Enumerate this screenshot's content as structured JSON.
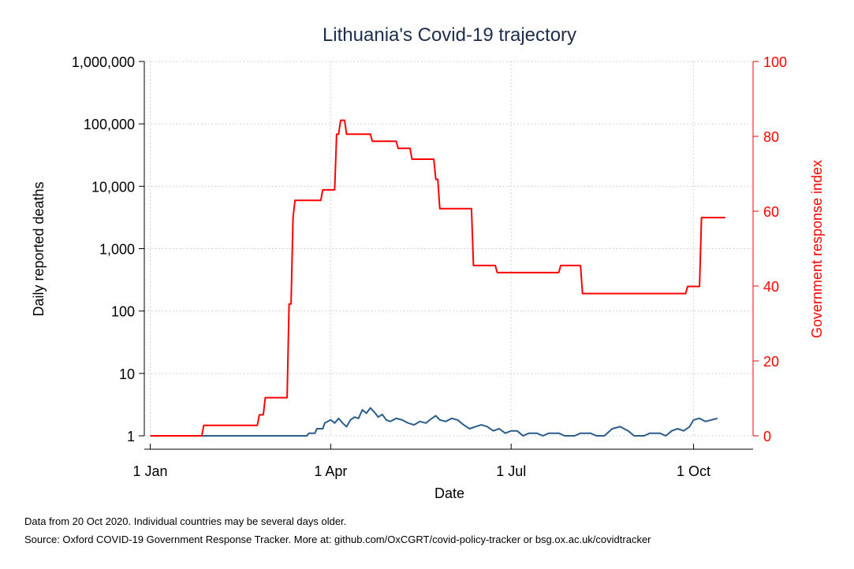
{
  "chart_data": {
    "type": "line",
    "title": "Lithuania's Covid-19 trajectory",
    "xlabel": "Date",
    "ylabel_left": "Daily reported deaths",
    "ylabel_right": "Government response index",
    "x_ticks": [
      {
        "label": "1 Jan",
        "date": "2020-01-01"
      },
      {
        "label": "1 Apr",
        "date": "2020-04-01"
      },
      {
        "label": "1 Jul",
        "date": "2020-07-01"
      },
      {
        "label": "1 Oct",
        "date": "2020-10-01"
      }
    ],
    "xlim": [
      "2019-12-29",
      "2020-10-31"
    ],
    "y_left": {
      "scale": "log",
      "ylim": [
        1,
        1000000
      ],
      "ticks": [
        {
          "label": "1",
          "value": 1
        },
        {
          "label": "10",
          "value": 10
        },
        {
          "label": "100",
          "value": 100
        },
        {
          "label": "1,000",
          "value": 1000
        },
        {
          "label": "10,000",
          "value": 10000
        },
        {
          "label": "100,000",
          "value": 100000
        },
        {
          "label": "1,000,000",
          "value": 1000000
        }
      ]
    },
    "y_right": {
      "scale": "linear",
      "ylim": [
        0,
        100
      ],
      "ticks": [
        {
          "label": "0",
          "value": 0
        },
        {
          "label": "20",
          "value": 20
        },
        {
          "label": "40",
          "value": 40
        },
        {
          "label": "60",
          "value": 60
        },
        {
          "label": "80",
          "value": 80
        },
        {
          "label": "100",
          "value": 100
        }
      ]
    },
    "grid": true,
    "legend": "none",
    "series": [
      {
        "axis": "left",
        "color": "#2b5d8a",
        "points": [
          [
            "2020-01-01",
            1
          ],
          [
            "2020-03-20",
            1
          ],
          [
            "2020-03-21",
            1.1
          ],
          [
            "2020-03-24",
            1.1
          ],
          [
            "2020-03-25",
            1.3
          ],
          [
            "2020-03-28",
            1.3
          ],
          [
            "2020-03-29",
            1.6
          ],
          [
            "2020-04-01",
            1.8
          ],
          [
            "2020-04-03",
            1.6
          ],
          [
            "2020-04-05",
            1.9
          ],
          [
            "2020-04-07",
            1.6
          ],
          [
            "2020-04-09",
            1.4
          ],
          [
            "2020-04-11",
            1.8
          ],
          [
            "2020-04-13",
            2.0
          ],
          [
            "2020-04-15",
            1.9
          ],
          [
            "2020-04-17",
            2.6
          ],
          [
            "2020-04-19",
            2.3
          ],
          [
            "2020-04-21",
            2.8
          ],
          [
            "2020-04-23",
            2.4
          ],
          [
            "2020-04-25",
            2.0
          ],
          [
            "2020-04-27",
            2.2
          ],
          [
            "2020-04-29",
            1.8
          ],
          [
            "2020-05-01",
            1.7
          ],
          [
            "2020-05-04",
            1.9
          ],
          [
            "2020-05-07",
            1.8
          ],
          [
            "2020-05-10",
            1.6
          ],
          [
            "2020-05-13",
            1.5
          ],
          [
            "2020-05-16",
            1.7
          ],
          [
            "2020-05-19",
            1.6
          ],
          [
            "2020-05-22",
            1.9
          ],
          [
            "2020-05-24",
            2.1
          ],
          [
            "2020-05-26",
            1.8
          ],
          [
            "2020-05-29",
            1.7
          ],
          [
            "2020-06-01",
            1.9
          ],
          [
            "2020-06-04",
            1.8
          ],
          [
            "2020-06-07",
            1.5
          ],
          [
            "2020-06-10",
            1.3
          ],
          [
            "2020-06-13",
            1.4
          ],
          [
            "2020-06-16",
            1.5
          ],
          [
            "2020-06-19",
            1.4
          ],
          [
            "2020-06-22",
            1.2
          ],
          [
            "2020-06-25",
            1.3
          ],
          [
            "2020-06-28",
            1.1
          ],
          [
            "2020-07-01",
            1.2
          ],
          [
            "2020-07-04",
            1.2
          ],
          [
            "2020-07-07",
            1.0
          ],
          [
            "2020-07-10",
            1.1
          ],
          [
            "2020-07-14",
            1.1
          ],
          [
            "2020-07-17",
            1.0
          ],
          [
            "2020-07-20",
            1.1
          ],
          [
            "2020-07-25",
            1.1
          ],
          [
            "2020-07-28",
            1.0
          ],
          [
            "2020-08-02",
            1.0
          ],
          [
            "2020-08-05",
            1.1
          ],
          [
            "2020-08-10",
            1.1
          ],
          [
            "2020-08-13",
            1.0
          ],
          [
            "2020-08-17",
            1.0
          ],
          [
            "2020-08-21",
            1.3
          ],
          [
            "2020-08-25",
            1.4
          ],
          [
            "2020-08-29",
            1.2
          ],
          [
            "2020-09-01",
            1.0
          ],
          [
            "2020-09-06",
            1.0
          ],
          [
            "2020-09-09",
            1.1
          ],
          [
            "2020-09-14",
            1.1
          ],
          [
            "2020-09-17",
            1.0
          ],
          [
            "2020-09-20",
            1.2
          ],
          [
            "2020-09-23",
            1.3
          ],
          [
            "2020-09-26",
            1.2
          ],
          [
            "2020-09-29",
            1.4
          ],
          [
            "2020-10-01",
            1.8
          ],
          [
            "2020-10-04",
            1.9
          ],
          [
            "2020-10-07",
            1.7
          ],
          [
            "2020-10-10",
            1.8
          ],
          [
            "2020-10-13",
            1.9
          ]
        ]
      },
      {
        "axis": "right",
        "color": "#ff0000",
        "points": [
          [
            "2020-01-01",
            0
          ],
          [
            "2020-01-27",
            0
          ],
          [
            "2020-01-28",
            2.8
          ],
          [
            "2020-02-24",
            2.8
          ],
          [
            "2020-02-25",
            5.6
          ],
          [
            "2020-02-27",
            5.6
          ],
          [
            "2020-02-28",
            10.2
          ],
          [
            "2020-03-10",
            10.2
          ],
          [
            "2020-03-11",
            35.2
          ],
          [
            "2020-03-12",
            35.2
          ],
          [
            "2020-03-13",
            58.3
          ],
          [
            "2020-03-14",
            62.9
          ],
          [
            "2020-03-27",
            62.9
          ],
          [
            "2020-03-28",
            65.7
          ],
          [
            "2020-04-03",
            65.7
          ],
          [
            "2020-04-04",
            80.6
          ],
          [
            "2020-04-05",
            80.6
          ],
          [
            "2020-04-06",
            84.3
          ],
          [
            "2020-04-08",
            84.3
          ],
          [
            "2020-04-09",
            80.6
          ],
          [
            "2020-04-21",
            80.6
          ],
          [
            "2020-04-22",
            78.7
          ],
          [
            "2020-05-04",
            78.7
          ],
          [
            "2020-05-05",
            76.8
          ],
          [
            "2020-05-11",
            76.8
          ],
          [
            "2020-05-12",
            73.9
          ],
          [
            "2020-05-23",
            73.9
          ],
          [
            "2020-05-24",
            68.5
          ],
          [
            "2020-05-25",
            68.5
          ],
          [
            "2020-05-26",
            60.7
          ],
          [
            "2020-06-11",
            60.7
          ],
          [
            "2020-06-12",
            45.5
          ],
          [
            "2020-06-23",
            45.5
          ],
          [
            "2020-06-24",
            43.6
          ],
          [
            "2020-07-25",
            43.6
          ],
          [
            "2020-07-26",
            45.5
          ],
          [
            "2020-08-05",
            45.5
          ],
          [
            "2020-08-06",
            38.0
          ],
          [
            "2020-09-27",
            38.0
          ],
          [
            "2020-09-28",
            39.9
          ],
          [
            "2020-10-04",
            39.9
          ],
          [
            "2020-10-05",
            58.3
          ],
          [
            "2020-10-17",
            58.3
          ]
        ]
      }
    ]
  },
  "notes": {
    "line1": "Data from 20 Oct 2020. Individual countries may be several days older.",
    "line2": "Source: Oxford COVID-19 Government Response Tracker. More at: github.com/OxCGRT/covid-policy-tracker or bsg.ox.ac.uk/covidtracker"
  }
}
